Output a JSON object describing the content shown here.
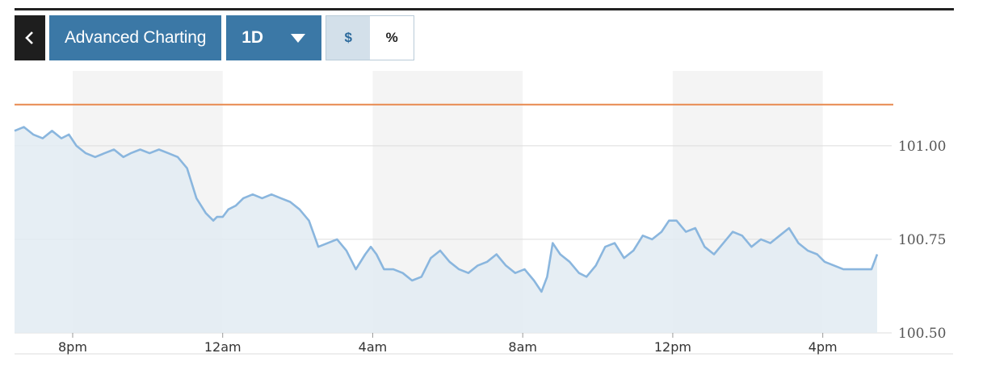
{
  "toolbar": {
    "back_icon": "chevron-left-icon",
    "advanced_label": "Advanced Charting",
    "range_label": "1D",
    "range_icon": "caret-down-icon",
    "dollar_label": "$",
    "percent_label": "%"
  },
  "colors": {
    "accent": "#3b78a6",
    "line": "#8ab6de",
    "area": "#e2ebf2",
    "reference": "#e8894f",
    "band": "#f4f4f4"
  },
  "chart_data": {
    "type": "area",
    "ylim": [
      100.5,
      101.2
    ],
    "xlim": [
      -1.55,
      21.45
    ],
    "reference_line": 101.11,
    "y_ticks": [
      {
        "value": 101.0,
        "label": "101.00"
      },
      {
        "value": 100.75,
        "label": "100.75"
      },
      {
        "value": 100.5,
        "label": "100.50"
      }
    ],
    "x_ticks": [
      {
        "value": 0,
        "label": "8pm"
      },
      {
        "value": 4,
        "label": "12am"
      },
      {
        "value": 8,
        "label": "4am"
      },
      {
        "value": 12,
        "label": "8am"
      },
      {
        "value": 16,
        "label": "12pm"
      },
      {
        "value": 20,
        "label": "4pm"
      }
    ],
    "shaded_bands": [
      [
        0,
        4
      ],
      [
        8,
        12
      ],
      [
        16,
        20
      ]
    ],
    "series": [
      {
        "x": [
          -1.55,
          -1.3,
          -1.05,
          -0.8,
          -0.55,
          -0.3,
          -0.1,
          0.1,
          0.35,
          0.6,
          0.85,
          1.1,
          1.35,
          1.55,
          1.8,
          2.05,
          2.3,
          2.55,
          2.8,
          3.05,
          3.3,
          3.55,
          3.75,
          3.85,
          4.0,
          4.15,
          4.35,
          4.55,
          4.8,
          5.05,
          5.3,
          5.55,
          5.8,
          6.05,
          6.3,
          6.55,
          6.8,
          7.05,
          7.3,
          7.55,
          7.8,
          7.95,
          8.1,
          8.3,
          8.55,
          8.8,
          9.05,
          9.3,
          9.55,
          9.8,
          10.05,
          10.3,
          10.55,
          10.8,
          11.05,
          11.3,
          11.55,
          11.8,
          12.05,
          12.3,
          12.5,
          12.65,
          12.8,
          13.0,
          13.25,
          13.5,
          13.7,
          13.95,
          14.2,
          14.45,
          14.7,
          14.95,
          15.2,
          15.45,
          15.7,
          15.9,
          16.1,
          16.35,
          16.6,
          16.85,
          17.1,
          17.35,
          17.6,
          17.85,
          18.1,
          18.35,
          18.6,
          18.85,
          19.1,
          19.35,
          19.6,
          19.85,
          20.05,
          20.3,
          20.55,
          20.8,
          21.05,
          21.3,
          21.45
        ],
        "y": [
          101.04,
          101.05,
          101.03,
          101.02,
          101.04,
          101.02,
          101.03,
          101.0,
          100.98,
          100.97,
          100.98,
          100.99,
          100.97,
          100.98,
          100.99,
          100.98,
          100.99,
          100.98,
          100.97,
          100.94,
          100.86,
          100.82,
          100.8,
          100.81,
          100.81,
          100.83,
          100.84,
          100.86,
          100.87,
          100.86,
          100.87,
          100.86,
          100.85,
          100.83,
          100.8,
          100.73,
          100.74,
          100.75,
          100.72,
          100.67,
          100.71,
          100.73,
          100.71,
          100.67,
          100.67,
          100.66,
          100.64,
          100.65,
          100.7,
          100.72,
          100.69,
          100.67,
          100.66,
          100.68,
          100.69,
          100.71,
          100.68,
          100.66,
          100.67,
          100.64,
          100.61,
          100.65,
          100.74,
          100.71,
          100.69,
          100.66,
          100.65,
          100.68,
          100.73,
          100.74,
          100.7,
          100.72,
          100.76,
          100.75,
          100.77,
          100.8,
          100.8,
          100.77,
          100.78,
          100.73,
          100.71,
          100.74,
          100.77,
          100.76,
          100.73,
          100.75,
          100.74,
          100.76,
          100.78,
          100.74,
          100.72,
          100.71,
          100.69,
          100.68,
          100.67,
          100.67,
          100.67,
          100.67,
          100.71
        ]
      }
    ]
  }
}
